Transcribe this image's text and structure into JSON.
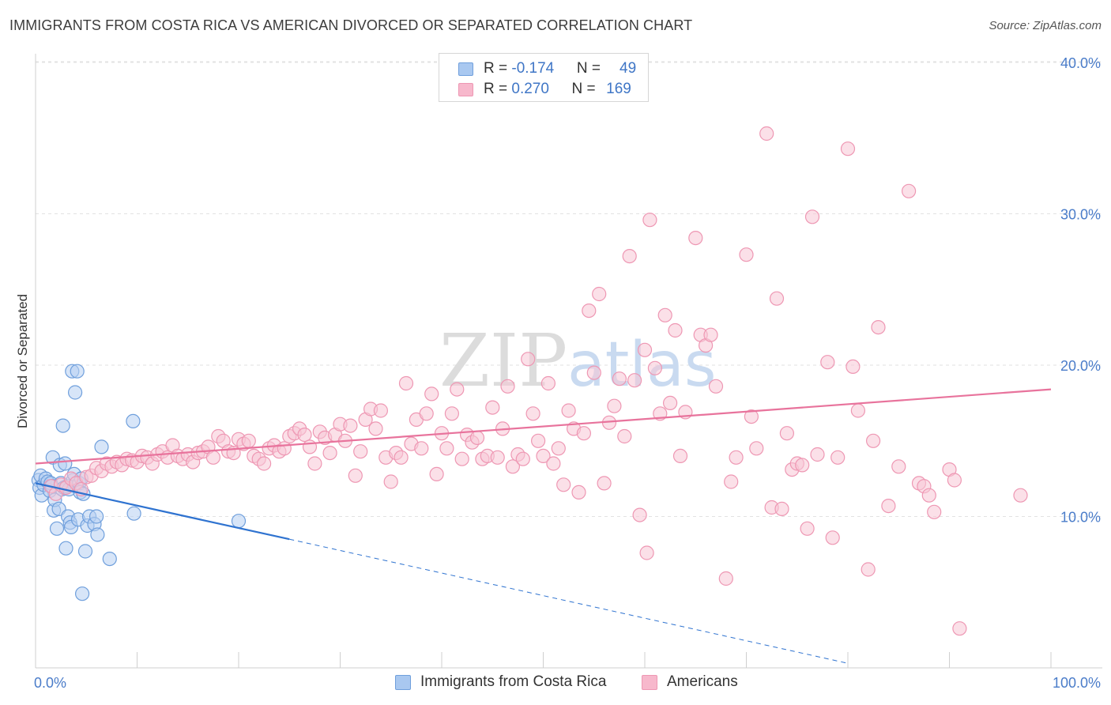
{
  "header": {
    "title": "IMMIGRANTS FROM COSTA RICA VS AMERICAN DIVORCED OR SEPARATED CORRELATION CHART",
    "source": "Source: ZipAtlas.com"
  },
  "watermark": {
    "zip": "ZIP",
    "atlas": "atlas"
  },
  "legend": {
    "rows": [
      {
        "r_label": "R = ",
        "r_value": "-0.174",
        "n_label": "N = ",
        "n_value": "49",
        "color": "#a9c8f0"
      },
      {
        "r_label": "R = ",
        "r_value": "0.270",
        "n_label": "N = ",
        "n_value": "169",
        "color": "#f7b8cc"
      }
    ]
  },
  "bottom_legend": [
    {
      "label": "Immigrants from Costa Rica",
      "color": "#a9c8f0"
    },
    {
      "label": "Americans",
      "color": "#f7b8cc"
    }
  ],
  "chart_data": {
    "type": "scatter",
    "ylabel": "Divorced or Separated",
    "x_ticks": [
      "0.0%",
      "100.0%"
    ],
    "y_ticks": [
      {
        "value": 10,
        "label": "10.0%"
      },
      {
        "value": 20,
        "label": "20.0%"
      },
      {
        "value": 30,
        "label": "30.0%"
      },
      {
        "value": 40,
        "label": "40.0%"
      }
    ],
    "xlim": [
      0,
      100
    ],
    "ylim": [
      0,
      40
    ],
    "grid": true,
    "series": [
      {
        "name": "Immigrants from Costa Rica",
        "stroke": "#6f9fdc",
        "fill": "#b7cff2",
        "trend_color": "#2f73d0",
        "trend": {
          "x0": 0,
          "y0": 12.2,
          "x1": 25,
          "y1": 8.5,
          "x_end": 80,
          "y_end": 0.3
        },
        "points": [
          [
            0.3,
            12.4
          ],
          [
            0.5,
            12.7
          ],
          [
            0.4,
            11.9
          ],
          [
            0.6,
            11.4
          ],
          [
            0.8,
            12.1
          ],
          [
            1.0,
            12.5
          ],
          [
            1.2,
            12.3
          ],
          [
            1.4,
            11.7
          ],
          [
            1.5,
            12.2
          ],
          [
            1.6,
            12.0
          ],
          [
            1.8,
            10.4
          ],
          [
            1.7,
            13.9
          ],
          [
            1.9,
            11.1
          ],
          [
            2.1,
            9.2
          ],
          [
            2.3,
            10.5
          ],
          [
            2.4,
            13.4
          ],
          [
            2.5,
            12.2
          ],
          [
            2.6,
            11.8
          ],
          [
            2.7,
            16.0
          ],
          [
            2.8,
            11.9
          ],
          [
            2.9,
            13.5
          ],
          [
            3.0,
            7.9
          ],
          [
            3.1,
            12.0
          ],
          [
            3.3,
            11.8
          ],
          [
            3.2,
            10.0
          ],
          [
            3.4,
            9.6
          ],
          [
            3.5,
            9.3
          ],
          [
            3.6,
            19.6
          ],
          [
            3.7,
            12.4
          ],
          [
            3.8,
            12.8
          ],
          [
            3.9,
            18.2
          ],
          [
            4.1,
            19.6
          ],
          [
            4.3,
            12.2
          ],
          [
            4.4,
            11.6
          ],
          [
            4.2,
            9.8
          ],
          [
            4.5,
            12.5
          ],
          [
            4.7,
            11.5
          ],
          [
            4.6,
            4.9
          ],
          [
            4.9,
            7.7
          ],
          [
            5.1,
            9.4
          ],
          [
            5.3,
            10.0
          ],
          [
            5.8,
            9.5
          ],
          [
            6.1,
            8.8
          ],
          [
            6.0,
            10.0
          ],
          [
            6.5,
            14.6
          ],
          [
            7.3,
            7.2
          ],
          [
            9.6,
            16.3
          ],
          [
            9.7,
            10.2
          ],
          [
            20.0,
            9.7
          ]
        ]
      },
      {
        "name": "Americans",
        "stroke": "#ee97b3",
        "fill": "#f8c7d6",
        "trend_color": "#e8739c",
        "trend": {
          "x0": 0,
          "y0": 13.5,
          "x1": 100,
          "y1": 18.4
        },
        "points": [
          [
            1.5,
            12.0
          ],
          [
            2.0,
            11.5
          ],
          [
            2.5,
            12.1
          ],
          [
            3.0,
            11.9
          ],
          [
            3.5,
            12.5
          ],
          [
            4.0,
            12.2
          ],
          [
            4.5,
            11.8
          ],
          [
            5.0,
            12.6
          ],
          [
            5.5,
            12.7
          ],
          [
            6.0,
            13.2
          ],
          [
            6.5,
            13.0
          ],
          [
            7.0,
            13.5
          ],
          [
            7.5,
            13.3
          ],
          [
            8.0,
            13.6
          ],
          [
            8.5,
            13.4
          ],
          [
            9.0,
            13.8
          ],
          [
            9.5,
            13.7
          ],
          [
            10.0,
            13.6
          ],
          [
            10.5,
            14.0
          ],
          [
            11.0,
            13.9
          ],
          [
            11.5,
            13.5
          ],
          [
            12.0,
            14.1
          ],
          [
            12.5,
            14.3
          ],
          [
            13.0,
            13.9
          ],
          [
            13.5,
            14.7
          ],
          [
            14.0,
            14.0
          ],
          [
            14.5,
            13.8
          ],
          [
            15.0,
            14.1
          ],
          [
            15.5,
            13.6
          ],
          [
            16.0,
            14.2
          ],
          [
            16.5,
            14.3
          ],
          [
            17.0,
            14.6
          ],
          [
            17.5,
            13.9
          ],
          [
            18.0,
            15.3
          ],
          [
            18.5,
            15.0
          ],
          [
            19.0,
            14.3
          ],
          [
            19.5,
            14.2
          ],
          [
            20.0,
            15.1
          ],
          [
            20.5,
            14.8
          ],
          [
            21.0,
            15.0
          ],
          [
            21.5,
            14.0
          ],
          [
            22.0,
            13.8
          ],
          [
            22.5,
            13.5
          ],
          [
            23.0,
            14.5
          ],
          [
            23.5,
            14.7
          ],
          [
            24.0,
            14.3
          ],
          [
            24.5,
            14.5
          ],
          [
            25.0,
            15.3
          ],
          [
            25.5,
            15.5
          ],
          [
            26.0,
            15.8
          ],
          [
            26.5,
            15.4
          ],
          [
            27.0,
            14.6
          ],
          [
            27.5,
            13.5
          ],
          [
            28.0,
            15.6
          ],
          [
            28.5,
            15.2
          ],
          [
            29.0,
            14.2
          ],
          [
            29.5,
            15.4
          ],
          [
            30.0,
            16.1
          ],
          [
            30.5,
            15.0
          ],
          [
            31.0,
            16.0
          ],
          [
            31.5,
            12.7
          ],
          [
            32.0,
            14.3
          ],
          [
            32.5,
            16.4
          ],
          [
            33.0,
            17.1
          ],
          [
            33.5,
            15.8
          ],
          [
            34.0,
            17.0
          ],
          [
            34.5,
            13.9
          ],
          [
            35.0,
            12.3
          ],
          [
            35.5,
            14.2
          ],
          [
            36.0,
            13.9
          ],
          [
            36.5,
            18.8
          ],
          [
            37.0,
            14.8
          ],
          [
            37.5,
            16.4
          ],
          [
            38.0,
            14.5
          ],
          [
            38.5,
            16.8
          ],
          [
            39.0,
            18.1
          ],
          [
            39.5,
            12.8
          ],
          [
            40.0,
            15.5
          ],
          [
            40.5,
            14.5
          ],
          [
            41.0,
            16.8
          ],
          [
            41.5,
            18.4
          ],
          [
            42.0,
            13.8
          ],
          [
            42.5,
            15.4
          ],
          [
            43.0,
            14.9
          ],
          [
            43.5,
            15.2
          ],
          [
            44.0,
            13.8
          ],
          [
            44.5,
            14.0
          ],
          [
            45.0,
            17.2
          ],
          [
            45.5,
            13.9
          ],
          [
            46.0,
            15.8
          ],
          [
            46.5,
            18.6
          ],
          [
            47.0,
            13.3
          ],
          [
            47.5,
            14.1
          ],
          [
            48.0,
            13.8
          ],
          [
            48.5,
            20.4
          ],
          [
            49.0,
            16.8
          ],
          [
            49.5,
            15.0
          ],
          [
            50.0,
            14.0
          ],
          [
            50.5,
            18.8
          ],
          [
            51.0,
            13.5
          ],
          [
            51.5,
            14.5
          ],
          [
            52.0,
            12.1
          ],
          [
            52.5,
            17.0
          ],
          [
            53.0,
            15.8
          ],
          [
            53.5,
            11.6
          ],
          [
            54.0,
            15.5
          ],
          [
            54.5,
            23.6
          ],
          [
            55.0,
            19.5
          ],
          [
            55.5,
            24.7
          ],
          [
            56.0,
            12.2
          ],
          [
            56.5,
            16.2
          ],
          [
            57.0,
            17.3
          ],
          [
            57.5,
            19.1
          ],
          [
            58.0,
            15.3
          ],
          [
            58.5,
            27.2
          ],
          [
            59.0,
            19.0
          ],
          [
            59.5,
            10.1
          ],
          [
            60.0,
            21.0
          ],
          [
            60.5,
            29.6
          ],
          [
            61.0,
            19.8
          ],
          [
            61.5,
            16.8
          ],
          [
            62.0,
            23.3
          ],
          [
            62.5,
            17.5
          ],
          [
            63.0,
            22.3
          ],
          [
            63.5,
            14.0
          ],
          [
            64.0,
            16.9
          ],
          [
            65.0,
            28.4
          ],
          [
            65.5,
            22.0
          ],
          [
            66.0,
            21.3
          ],
          [
            66.5,
            22.0
          ],
          [
            67.0,
            18.6
          ],
          [
            68.0,
            5.9
          ],
          [
            68.5,
            12.3
          ],
          [
            69.0,
            13.9
          ],
          [
            70.0,
            27.3
          ],
          [
            70.5,
            16.6
          ],
          [
            71.0,
            14.5
          ],
          [
            72.0,
            35.3
          ],
          [
            72.5,
            10.6
          ],
          [
            73.0,
            24.4
          ],
          [
            73.5,
            10.5
          ],
          [
            74.0,
            15.5
          ],
          [
            74.5,
            13.1
          ],
          [
            75.0,
            13.5
          ],
          [
            75.5,
            13.4
          ],
          [
            76.0,
            9.2
          ],
          [
            76.5,
            29.8
          ],
          [
            77.0,
            14.1
          ],
          [
            78.0,
            20.2
          ],
          [
            78.5,
            8.6
          ],
          [
            79.0,
            13.9
          ],
          [
            80.0,
            34.3
          ],
          [
            80.5,
            19.9
          ],
          [
            81.0,
            17.0
          ],
          [
            82.0,
            6.5
          ],
          [
            82.5,
            15.0
          ],
          [
            83.0,
            22.5
          ],
          [
            84.0,
            10.7
          ],
          [
            85.0,
            13.3
          ],
          [
            86.0,
            31.5
          ],
          [
            87.0,
            12.2
          ],
          [
            87.5,
            12.0
          ],
          [
            88.0,
            11.4
          ],
          [
            90.0,
            13.1
          ],
          [
            90.5,
            12.4
          ],
          [
            91.0,
            2.6
          ],
          [
            97.0,
            11.4
          ],
          [
            88.5,
            10.3
          ],
          [
            60.2,
            7.6
          ]
        ]
      }
    ]
  }
}
